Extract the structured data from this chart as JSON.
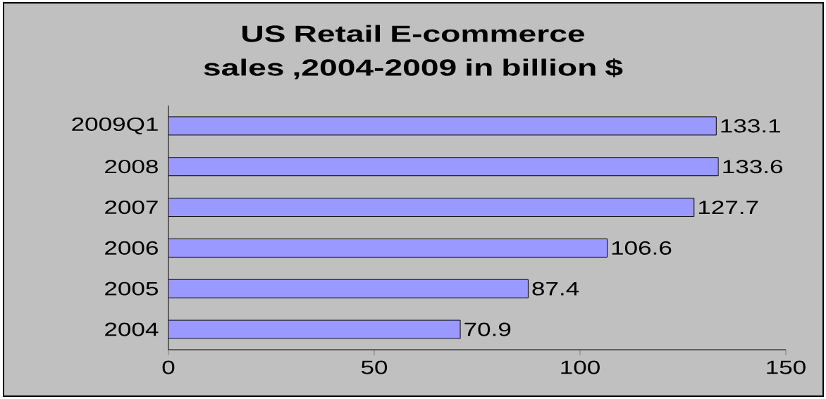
{
  "chart_data": {
    "type": "bar",
    "orientation": "horizontal",
    "title": "US Retail E-commerce sales ,2004-2009 in billion $",
    "categories": [
      "2009Q1",
      "2008",
      "2007",
      "2006",
      "2005",
      "2004"
    ],
    "values": [
      133.1,
      133.6,
      127.7,
      106.6,
      87.4,
      70.9
    ],
    "color": "#9999ff",
    "xlim": [
      0,
      150
    ],
    "xticks": [
      0,
      50,
      100,
      150
    ],
    "data_labels": true,
    "grid": false
  }
}
